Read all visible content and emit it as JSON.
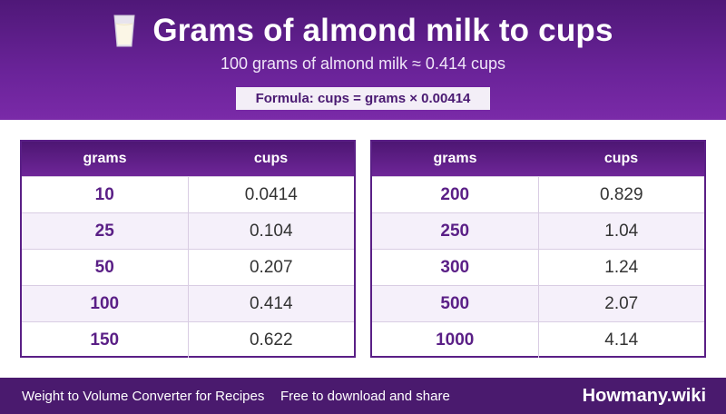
{
  "header": {
    "icon": "milk-glass-icon",
    "title": "Grams of almond milk to cups",
    "subtitle": "100 grams of almond milk ≈ 0.414 cups",
    "formula": "Formula: cups = grams × 0.00414"
  },
  "tables": [
    {
      "headers": [
        "grams",
        "cups"
      ],
      "rows": [
        {
          "grams": "10",
          "cups": "0.0414"
        },
        {
          "grams": "25",
          "cups": "0.104"
        },
        {
          "grams": "50",
          "cups": "0.207"
        },
        {
          "grams": "100",
          "cups": "0.414"
        },
        {
          "grams": "150",
          "cups": "0.622"
        }
      ]
    },
    {
      "headers": [
        "grams",
        "cups"
      ],
      "rows": [
        {
          "grams": "200",
          "cups": "0.829"
        },
        {
          "grams": "250",
          "cups": "1.04"
        },
        {
          "grams": "300",
          "cups": "1.24"
        },
        {
          "grams": "500",
          "cups": "2.07"
        },
        {
          "grams": "1000",
          "cups": "4.14"
        }
      ]
    }
  ],
  "footer": {
    "left_text": "Weight to Volume Converter for Recipes",
    "middle_text": "Free to download and share",
    "brand": "Howmany.wiki"
  },
  "colors": {
    "header_purple": "#6a2399",
    "footer_purple": "#4a1a6e",
    "accent_text": "#5a1f86"
  }
}
